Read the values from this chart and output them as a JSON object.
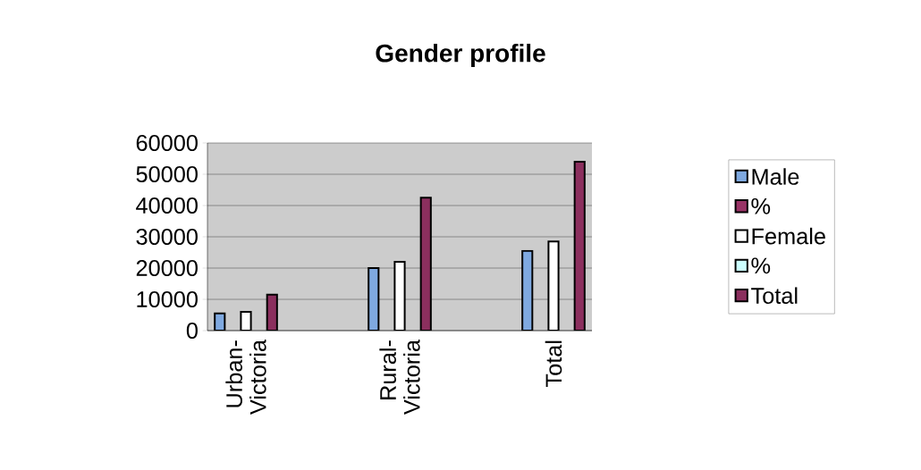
{
  "chart_data": {
    "type": "bar",
    "title": "Gender profile",
    "categories": [
      "Urban-Victoria",
      null,
      "Rural-Victoria",
      null,
      "Total"
    ],
    "series": [
      {
        "name": "Male",
        "color": "#7fa9e0",
        "values": [
          5500,
          null,
          20000,
          null,
          25500
        ]
      },
      {
        "name": "%",
        "color": "#993366",
        "values": [
          null,
          null,
          null,
          null,
          null
        ]
      },
      {
        "name": "Female",
        "color": "#ffffff",
        "values": [
          6000,
          null,
          22000,
          null,
          28500
        ]
      },
      {
        "name": "%",
        "color": "#ccffff",
        "values": [
          null,
          null,
          null,
          null,
          null
        ]
      },
      {
        "name": "Total",
        "color": "#8b2f5e",
        "values": [
          11500,
          null,
          42500,
          null,
          54000
        ]
      }
    ],
    "ylim": [
      0,
      60000
    ],
    "yticks": [
      0,
      10000,
      20000,
      30000,
      40000,
      50000,
      60000
    ],
    "grid": "y",
    "legend": "right"
  }
}
